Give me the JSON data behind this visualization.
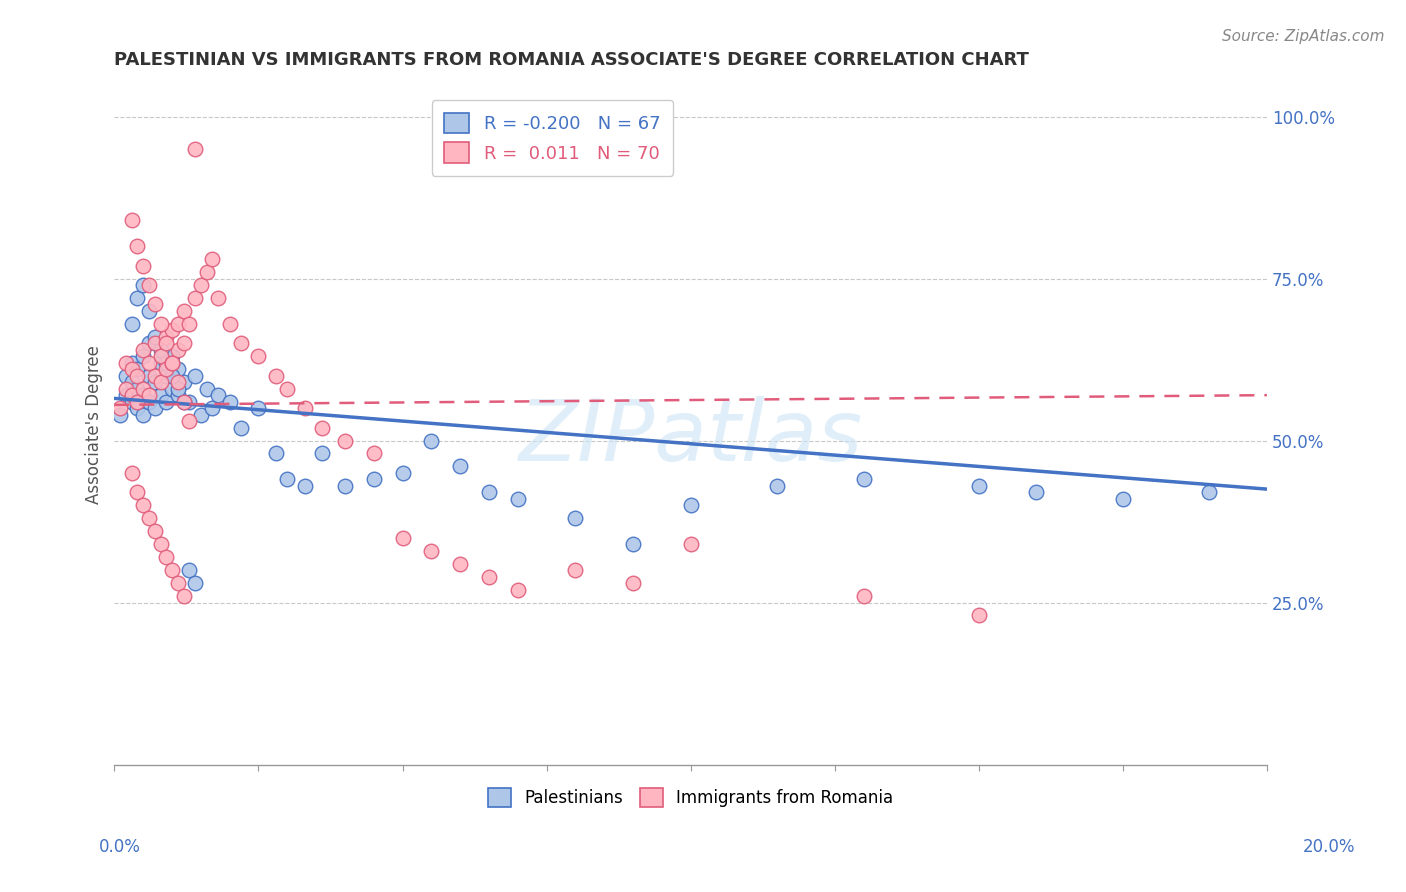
{
  "title": "PALESTINIAN VS IMMIGRANTS FROM ROMANIA ASSOCIATE'S DEGREE CORRELATION CHART",
  "source": "Source: ZipAtlas.com",
  "ylabel": "Associate's Degree",
  "xlim": [
    0.0,
    0.2
  ],
  "ylim": [
    0.0,
    1.05
  ],
  "yticks": [
    0.25,
    0.5,
    0.75,
    1.0
  ],
  "ytick_labels": [
    "25.0%",
    "50.0%",
    "75.0%",
    "100.0%"
  ],
  "background_color": "#ffffff",
  "grid_color": "#c8c8c8",
  "watermark": "ZIPatlas",
  "blue_scatter_x": [
    0.001,
    0.002,
    0.002,
    0.003,
    0.003,
    0.003,
    0.004,
    0.004,
    0.004,
    0.005,
    0.005,
    0.005,
    0.006,
    0.006,
    0.006,
    0.007,
    0.007,
    0.008,
    0.008,
    0.009,
    0.009,
    0.01,
    0.01,
    0.011,
    0.011,
    0.012,
    0.013,
    0.014,
    0.015,
    0.016,
    0.017,
    0.018,
    0.02,
    0.022,
    0.025,
    0.028,
    0.03,
    0.033,
    0.036,
    0.04,
    0.045,
    0.05,
    0.055,
    0.06,
    0.065,
    0.07,
    0.08,
    0.09,
    0.1,
    0.115,
    0.13,
    0.15,
    0.16,
    0.175,
    0.19,
    0.003,
    0.004,
    0.005,
    0.006,
    0.007,
    0.008,
    0.009,
    0.01,
    0.011,
    0.012,
    0.013,
    0.014
  ],
  "blue_scatter_y": [
    0.54,
    0.57,
    0.6,
    0.56,
    0.59,
    0.62,
    0.55,
    0.58,
    0.61,
    0.54,
    0.57,
    0.63,
    0.56,
    0.6,
    0.65,
    0.55,
    0.59,
    0.57,
    0.62,
    0.56,
    0.6,
    0.58,
    0.63,
    0.57,
    0.61,
    0.59,
    0.56,
    0.6,
    0.54,
    0.58,
    0.55,
    0.57,
    0.56,
    0.52,
    0.55,
    0.48,
    0.44,
    0.43,
    0.48,
    0.43,
    0.44,
    0.45,
    0.5,
    0.46,
    0.42,
    0.41,
    0.38,
    0.34,
    0.4,
    0.43,
    0.44,
    0.43,
    0.42,
    0.41,
    0.42,
    0.68,
    0.72,
    0.74,
    0.7,
    0.66,
    0.64,
    0.62,
    0.6,
    0.58,
    0.56,
    0.3,
    0.28
  ],
  "pink_scatter_x": [
    0.001,
    0.002,
    0.002,
    0.003,
    0.003,
    0.004,
    0.004,
    0.005,
    0.005,
    0.006,
    0.006,
    0.007,
    0.007,
    0.008,
    0.008,
    0.009,
    0.009,
    0.01,
    0.01,
    0.011,
    0.011,
    0.012,
    0.012,
    0.013,
    0.014,
    0.015,
    0.016,
    0.017,
    0.018,
    0.02,
    0.022,
    0.025,
    0.028,
    0.03,
    0.033,
    0.036,
    0.04,
    0.045,
    0.05,
    0.055,
    0.06,
    0.065,
    0.07,
    0.08,
    0.09,
    0.1,
    0.13,
    0.15,
    0.003,
    0.004,
    0.005,
    0.006,
    0.007,
    0.008,
    0.009,
    0.01,
    0.011,
    0.012,
    0.003,
    0.004,
    0.005,
    0.006,
    0.007,
    0.008,
    0.009,
    0.01,
    0.011,
    0.012,
    0.013,
    0.014
  ],
  "pink_scatter_y": [
    0.55,
    0.58,
    0.62,
    0.57,
    0.61,
    0.56,
    0.6,
    0.58,
    0.64,
    0.57,
    0.62,
    0.6,
    0.65,
    0.59,
    0.63,
    0.61,
    0.66,
    0.62,
    0.67,
    0.64,
    0.68,
    0.65,
    0.7,
    0.68,
    0.72,
    0.74,
    0.76,
    0.78,
    0.72,
    0.68,
    0.65,
    0.63,
    0.6,
    0.58,
    0.55,
    0.52,
    0.5,
    0.48,
    0.35,
    0.33,
    0.31,
    0.29,
    0.27,
    0.3,
    0.28,
    0.34,
    0.26,
    0.23,
    0.45,
    0.42,
    0.4,
    0.38,
    0.36,
    0.34,
    0.32,
    0.3,
    0.28,
    0.26,
    0.84,
    0.8,
    0.77,
    0.74,
    0.71,
    0.68,
    0.65,
    0.62,
    0.59,
    0.56,
    0.53,
    0.95
  ],
  "blue_line_x": [
    0.0,
    0.2
  ],
  "blue_line_y": [
    0.565,
    0.425
  ],
  "pink_line_x": [
    0.0,
    0.2
  ],
  "pink_line_y": [
    0.555,
    0.57
  ],
  "blue_color": "#4472c4",
  "pink_color": "#e05c7a",
  "blue_scatter_facecolor": "#aec7e8",
  "pink_scatter_facecolor": "#ffb6c1",
  "title_fontsize": 13,
  "axis_label_fontsize": 12,
  "tick_fontsize": 12,
  "source_fontsize": 11,
  "legend_r1": "R = -0.200",
  "legend_n1": "N = 67",
  "legend_r2": "R =  0.011",
  "legend_n2": "N = 70",
  "legend_label1": "Palestinians",
  "legend_label2": "Immigrants from Romania"
}
